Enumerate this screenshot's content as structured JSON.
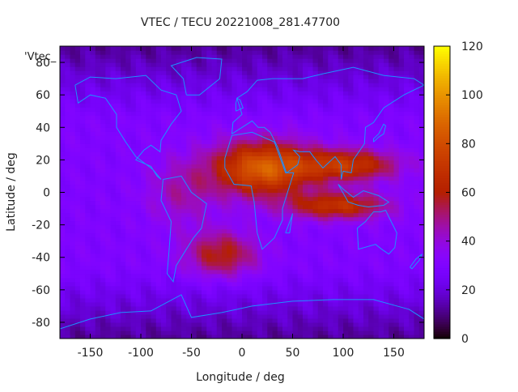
{
  "chart_data": {
    "type": "heatmap",
    "title": "VTEC / TECU 20221008_281.47700",
    "xlabel": "Longitude / deg",
    "ylabel": "Latitude / deg",
    "xlim": [
      -180,
      180
    ],
    "ylim": [
      -90,
      90
    ],
    "x_ticks": [
      -150,
      -100,
      -50,
      0,
      50,
      100,
      150
    ],
    "y_ticks": [
      -80,
      -60,
      -40,
      -20,
      0,
      20,
      40,
      60,
      80
    ],
    "x_tick_labels": [
      "-150",
      "-100",
      "-50",
      "0",
      "50",
      "100",
      "150"
    ],
    "y_tick_labels": [
      "-80",
      "-60",
      "-40",
      "-20",
      "0",
      "20",
      "40",
      "60",
      "80"
    ],
    "colorbar": {
      "range": [
        0,
        120
      ],
      "ticks": [
        0,
        20,
        40,
        60,
        80,
        100,
        120
      ],
      "tick_labels": [
        "0",
        "20",
        "40",
        "60",
        "80",
        "100",
        "120"
      ],
      "colormap": "black-purple-red-orange-yellow"
    },
    "series_label": "'Vtec_",
    "overlay": "coastlines",
    "coastline_color": "#1e90ff",
    "grid": false,
    "estimated_features": [
      {
        "feature": "daytime crest (west)",
        "lon": [
          -20,
          70
        ],
        "lat": [
          -5,
          30
        ],
        "value": 85
      },
      {
        "feature": "daytime crest (east)",
        "lon": [
          60,
          150
        ],
        "lat": [
          5,
          25
        ],
        "value": 75
      },
      {
        "feature": "southern crest",
        "lon": [
          60,
          140
        ],
        "lat": [
          -15,
          -5
        ],
        "value": 70
      },
      {
        "feature": "south Atlantic enhancement",
        "lon": [
          -50,
          10
        ],
        "lat": [
          -50,
          -25
        ],
        "value": 60
      },
      {
        "feature": "background mid/low latitudes",
        "value": 30
      },
      {
        "feature": "polar / night regions",
        "value": 12
      }
    ]
  }
}
